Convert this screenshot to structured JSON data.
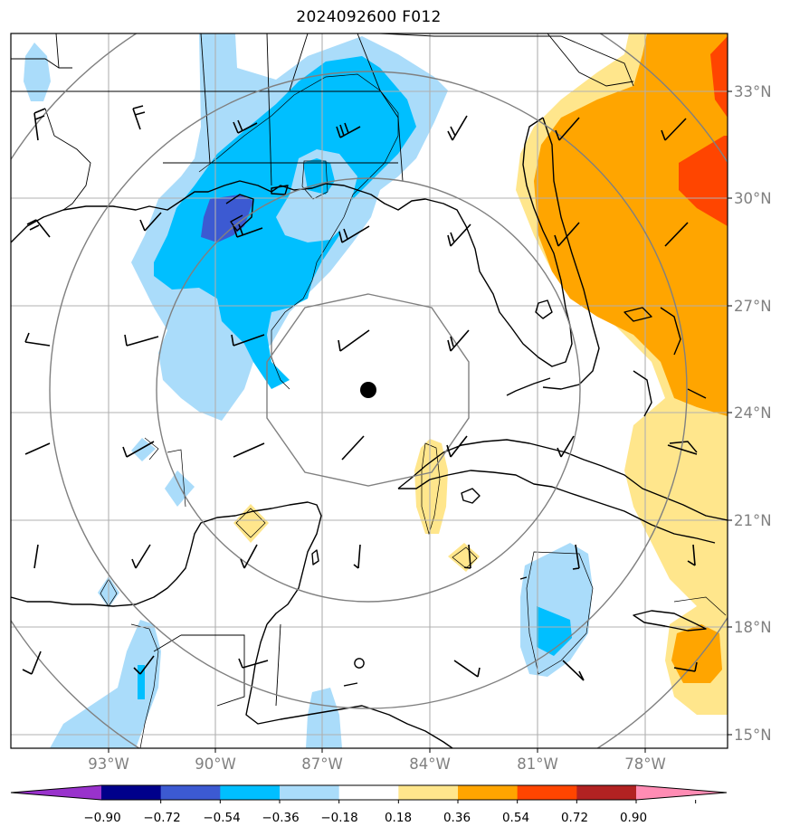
{
  "title": "2024092600 F012",
  "lon_labels": [
    "93°W",
    "90°W",
    "87°W",
    "84°W",
    "81°W",
    "78°W"
  ],
  "lat_labels": [
    "33°N",
    "30°N",
    "27°N",
    "24°N",
    "21°N",
    "18°N",
    "15°N"
  ],
  "colorbar": {
    "labels": [
      "−0.90",
      "−0.72",
      "−0.54",
      "−0.36",
      "−0.18",
      "0.18",
      "0.36",
      "0.54",
      "0.72",
      "0.90"
    ],
    "colors": [
      "#9932cc",
      "#00008b",
      "#3c5ad2",
      "#00bfff",
      "#aadcfa",
      "#ffffff",
      "#ffe68c",
      "#ffa500",
      "#ff4500",
      "#b22222",
      "#ff8cb4"
    ]
  },
  "fill_colors": {
    "neg_light": "#aadcfa",
    "neg_mid": "#00bfff",
    "neg_strong": "#3c5ad2",
    "pos_light": "#ffe68c",
    "pos_mid": "#ffa500",
    "pos_strong": "#ff4500"
  },
  "storm_center": {
    "lon": -85.8,
    "lat": 24.6
  }
}
